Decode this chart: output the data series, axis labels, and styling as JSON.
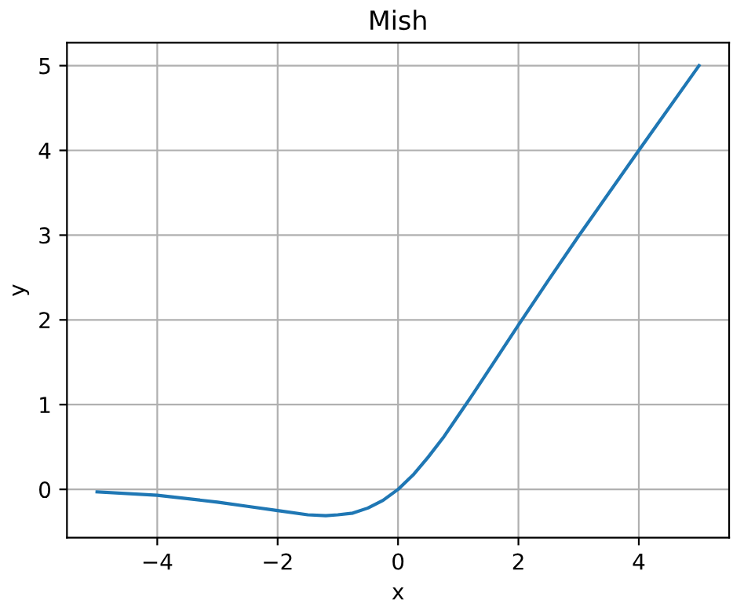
{
  "chart_data": {
    "type": "line",
    "title": "Mish",
    "xlabel": "x",
    "ylabel": "y",
    "x": [
      -5,
      -4,
      -3,
      -2.5,
      -2,
      -1.5,
      -1.2,
      -1,
      -0.75,
      -0.5,
      -0.25,
      0,
      0.25,
      0.5,
      0.75,
      1,
      1.25,
      1.5,
      2,
      2.5,
      3,
      4,
      5
    ],
    "series": [
      {
        "color": "#1f77b4",
        "values": [
          -0.03,
          -0.07,
          -0.15,
          -0.2,
          -0.25,
          -0.3,
          -0.31,
          -0.3,
          -0.28,
          -0.22,
          -0.13,
          0,
          0.17,
          0.38,
          0.61,
          0.87,
          1.13,
          1.4,
          1.94,
          2.47,
          2.99,
          4.0,
          5.0
        ]
      }
    ],
    "xlim": [
      -5.5,
      5.5
    ],
    "ylim": [
      -0.57,
      5.27
    ],
    "xticks": [
      {
        "value": -4,
        "label": "−4"
      },
      {
        "value": -2,
        "label": "−2"
      },
      0,
      2,
      4
    ],
    "yticks": [
      0,
      1,
      2,
      3,
      4,
      5
    ],
    "grid": true,
    "line_style": "solid",
    "marker": "none"
  }
}
